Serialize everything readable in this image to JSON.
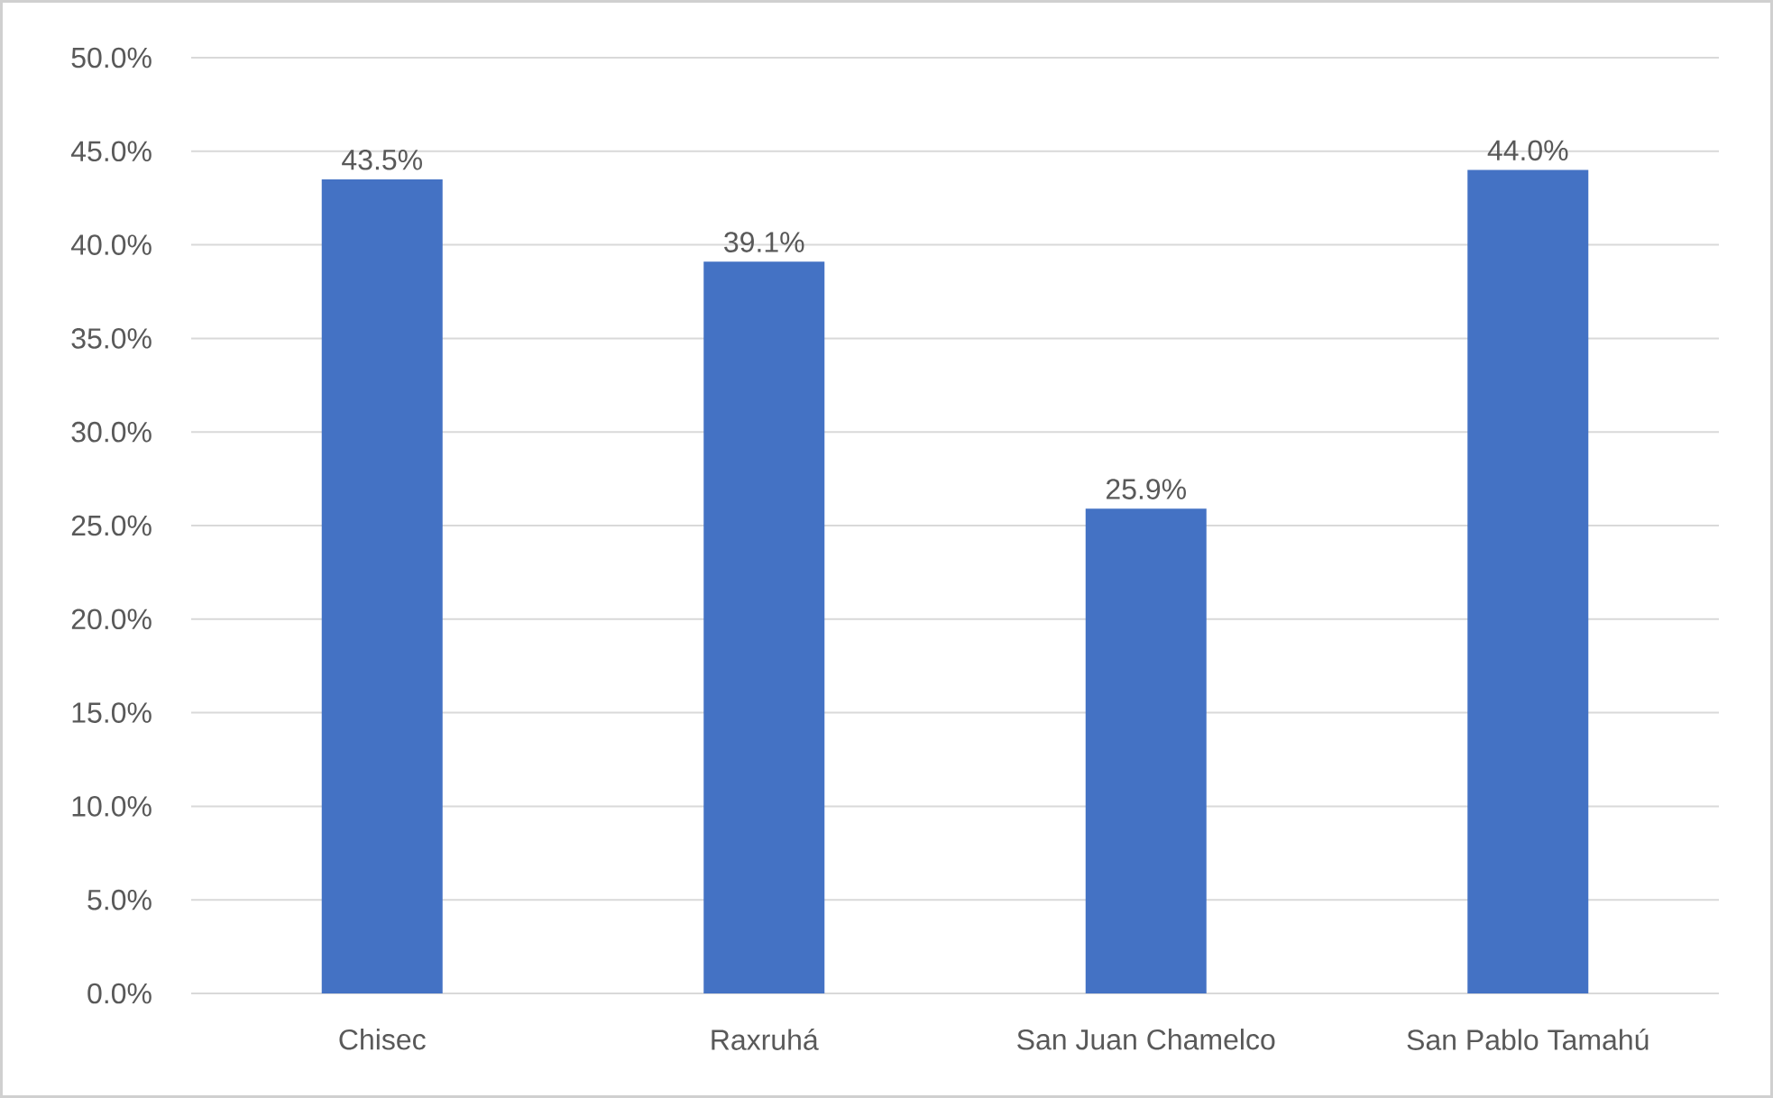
{
  "chart_data": {
    "type": "bar",
    "categories": [
      "Chisec",
      "Raxruhá",
      "San Juan Chamelco",
      "San Pablo Tamahú"
    ],
    "values": [
      43.5,
      39.1,
      25.9,
      44.0
    ],
    "value_labels": [
      "43.5%",
      "39.1%",
      "25.9%",
      "44.0%"
    ],
    "color": "#4472c4",
    "ylim": [
      0,
      50
    ],
    "yticks": [
      {
        "value": 0,
        "label": "0.0%"
      },
      {
        "value": 5,
        "label": "5.0%"
      },
      {
        "value": 10,
        "label": "10.0%"
      },
      {
        "value": 15,
        "label": "15.0%"
      },
      {
        "value": 20,
        "label": "20.0%"
      },
      {
        "value": 25,
        "label": "25.0%"
      },
      {
        "value": 30,
        "label": "30.0%"
      },
      {
        "value": 35,
        "label": "35.0%"
      },
      {
        "value": 40,
        "label": "40.0%"
      },
      {
        "value": 45,
        "label": "45.0%"
      },
      {
        "value": 50,
        "label": "50.0%"
      }
    ],
    "grid": "y"
  }
}
